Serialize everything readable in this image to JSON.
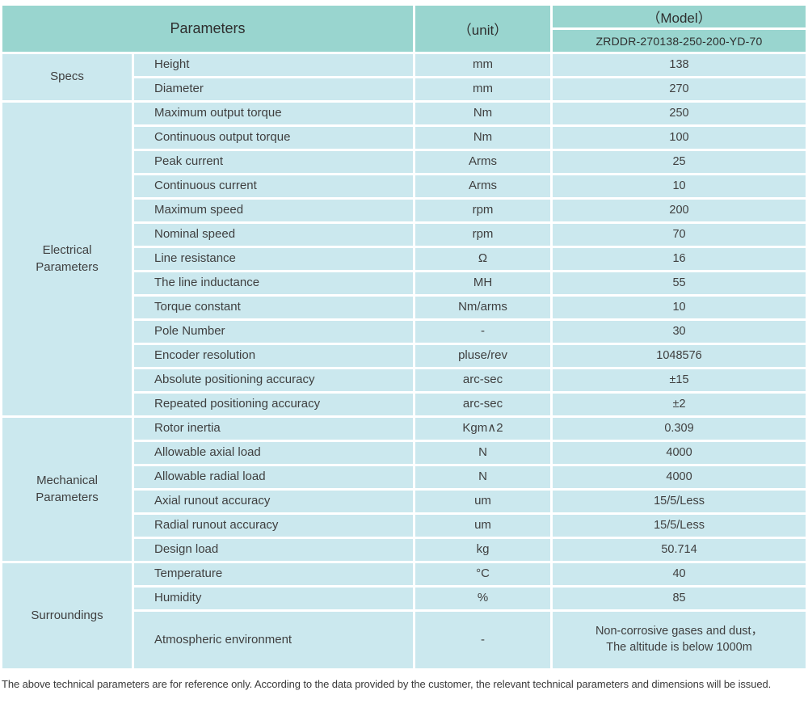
{
  "colors": {
    "header_bg": "#99d5cf",
    "cell_bg": "#cbe8ee",
    "gap": "#ffffff",
    "text": "#3f3f3f",
    "header_text": "#2e2e2e"
  },
  "header": {
    "parameters_label": "Parameters",
    "unit_label": "（unit）",
    "model_label": "（Model）",
    "model_value": "ZRDDR-270138-250-200-YD-70"
  },
  "sections": [
    {
      "name": "Specs",
      "rows": [
        {
          "param": "Height",
          "unit": "mm",
          "value": "138"
        },
        {
          "param": "Diameter",
          "unit": "mm",
          "value": "270"
        }
      ]
    },
    {
      "name": "Electrical\nParameters",
      "rows": [
        {
          "param": "Maximum output torque",
          "unit": "Nm",
          "value": "250"
        },
        {
          "param": "Continuous output torque",
          "unit": "Nm",
          "value": "100"
        },
        {
          "param": "Peak current",
          "unit": "Arms",
          "value": "25"
        },
        {
          "param": "Continuous current",
          "unit": "Arms",
          "value": "10"
        },
        {
          "param": "Maximum speed",
          "unit": "rpm",
          "value": "200"
        },
        {
          "param": "Nominal speed",
          "unit": "rpm",
          "value": "70"
        },
        {
          "param": "Line resistance",
          "unit": "Ω",
          "value": "16"
        },
        {
          "param": "The line inductance",
          "unit": "MH",
          "value": "55"
        },
        {
          "param": "Torque constant",
          "unit": "Nm/arms",
          "value": "10"
        },
        {
          "param": "Pole Number",
          "unit": "-",
          "value": "30"
        },
        {
          "param": "Encoder resolution",
          "unit": "pluse/rev",
          "value": "1048576"
        },
        {
          "param": "Absolute positioning accuracy",
          "unit": "arc-sec",
          "value": "±15"
        },
        {
          "param": "Repeated positioning accuracy",
          "unit": "arc-sec",
          "value": "±2"
        }
      ]
    },
    {
      "name": "Mechanical\nParameters",
      "rows": [
        {
          "param": "Rotor inertia",
          "unit": "Kgm∧2",
          "value": "0.309"
        },
        {
          "param": "Allowable axial load",
          "unit": "N",
          "value": "4000"
        },
        {
          "param": "Allowable radial load",
          "unit": "N",
          "value": "4000"
        },
        {
          "param": "Axial runout accuracy",
          "unit": "um",
          "value": "15/5/Less"
        },
        {
          "param": "Radial runout accuracy",
          "unit": "um",
          "value": "15/5/Less"
        },
        {
          "param": "Design load",
          "unit": "kg",
          "value": "50.714"
        }
      ]
    },
    {
      "name": "Surroundings",
      "rows": [
        {
          "param": "Temperature",
          "unit": "°C",
          "value": "40"
        },
        {
          "param": "Humidity",
          "unit": "%",
          "value": "85"
        },
        {
          "param": "Atmospheric environment",
          "unit": "-",
          "value": "Non-corrosive gases and dust，\nThe altitude is below 1000m"
        }
      ]
    }
  ],
  "footer": {
    "note": "The above technical parameters are for reference only. According to the data provided by the customer, the relevant technical parameters and dimensions will be issued."
  }
}
